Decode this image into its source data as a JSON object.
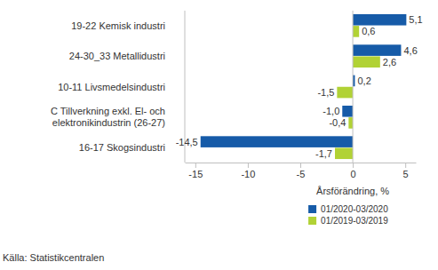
{
  "chart_data": {
    "type": "bar",
    "orientation": "horizontal",
    "categories": [
      "19-22 Kemisk industri",
      "24-30_33 Metallidustri",
      "10-11 Livsmedelsindustri",
      "C Tillverkning exkl. El- och elektronikindustrin (26-27)",
      "16-17 Skogsindustri"
    ],
    "series": [
      {
        "name": "01/2020-03/2020",
        "color": "#165ba8",
        "values": [
          5.1,
          4.6,
          0.2,
          -1.0,
          -14.5
        ],
        "value_labels": [
          "5,1",
          "4,6",
          "0,2",
          "-1,0",
          "-14,5"
        ]
      },
      {
        "name": "01/2019-03/2019",
        "color": "#b1d235",
        "values": [
          0.6,
          2.6,
          -1.5,
          -0.4,
          -1.7
        ],
        "value_labels": [
          "0,6",
          "2,6",
          "-1,5",
          "-0,4",
          "-1,7"
        ]
      }
    ],
    "x_label": "Årsförändring, %",
    "xlim": [
      -16,
      6
    ],
    "xticks": [
      -15,
      -10,
      -5,
      0,
      5
    ],
    "grid": false,
    "data_labels": true,
    "legend": "bottom",
    "annotations": [
      "Källa: Statistikcentralen"
    ]
  }
}
